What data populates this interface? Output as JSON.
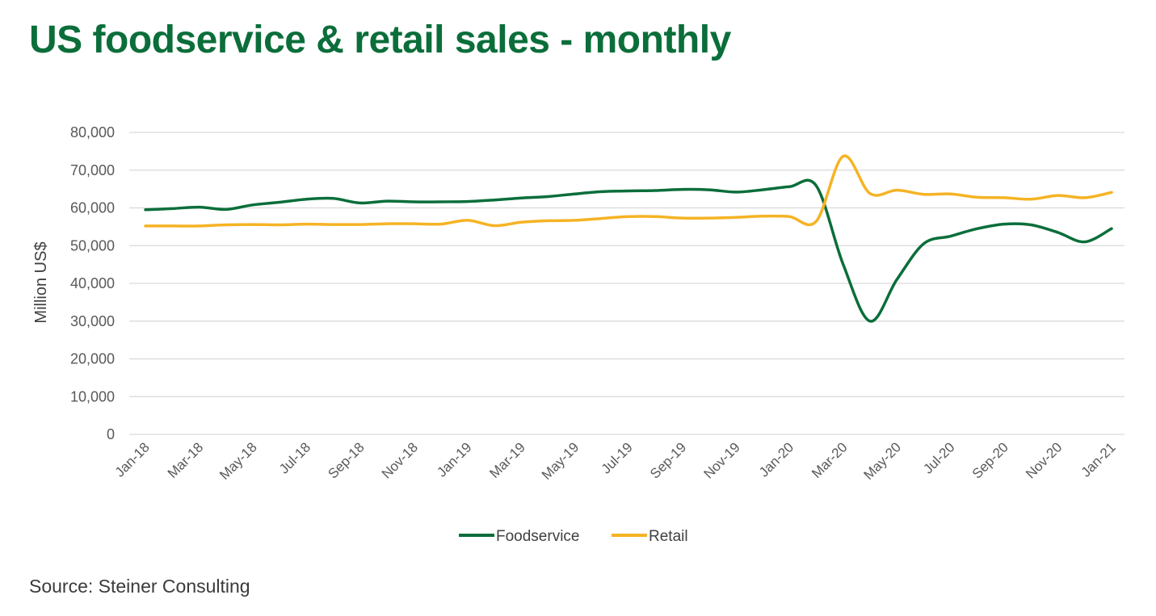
{
  "chart_data": {
    "type": "line",
    "title": "US foodservice & retail sales - monthly",
    "ylabel": "Million US$",
    "xlabel": "",
    "ylim": [
      0,
      80000
    ],
    "yticks": [
      0,
      10000,
      20000,
      30000,
      40000,
      50000,
      60000,
      70000,
      80000
    ],
    "ytick_labels": [
      "0",
      "10,000",
      "20,000",
      "30,000",
      "40,000",
      "50,000",
      "60,000",
      "70,000",
      "80,000"
    ],
    "grid": true,
    "legend": "bottom",
    "categories": [
      "Jan-18",
      "Feb-18",
      "Mar-18",
      "Apr-18",
      "May-18",
      "Jun-18",
      "Jul-18",
      "Aug-18",
      "Sep-18",
      "Oct-18",
      "Nov-18",
      "Dec-18",
      "Jan-19",
      "Feb-19",
      "Mar-19",
      "Apr-19",
      "May-19",
      "Jun-19",
      "Jul-19",
      "Aug-19",
      "Sep-19",
      "Oct-19",
      "Nov-19",
      "Dec-19",
      "Jan-20",
      "Feb-20",
      "Mar-20",
      "Apr-20",
      "May-20",
      "Jun-20",
      "Jul-20",
      "Aug-20",
      "Sep-20",
      "Oct-20",
      "Nov-20",
      "Dec-20",
      "Jan-21"
    ],
    "tick_labels": [
      "Jan-18",
      "Mar-18",
      "May-18",
      "Jul-18",
      "Sep-18",
      "Nov-18",
      "Jan-19",
      "Mar-19",
      "May-19",
      "Jul-19",
      "Sep-19",
      "Nov-19",
      "Jan-20",
      "Mar-20",
      "May-20",
      "Jul-20",
      "Sep-20",
      "Nov-20",
      "Jan-21"
    ],
    "series": [
      {
        "name": "Foodservice",
        "color": "#0b6e3a",
        "values": [
          59500,
          59800,
          60200,
          59600,
          60800,
          61500,
          62300,
          62500,
          61300,
          61800,
          61600,
          61600,
          61700,
          62100,
          62600,
          63000,
          63700,
          64300,
          64500,
          64600,
          64900,
          64800,
          64200,
          64800,
          65600,
          65800,
          45000,
          30000,
          41000,
          50500,
          52500,
          54500,
          55700,
          55500,
          53500,
          51000,
          54500
        ]
      },
      {
        "name": "Retail",
        "color": "#f5b324",
        "values": [
          55200,
          55200,
          55200,
          55500,
          55600,
          55500,
          55700,
          55600,
          55600,
          55800,
          55800,
          55700,
          56700,
          55300,
          56200,
          56600,
          56700,
          57200,
          57700,
          57700,
          57300,
          57300,
          57500,
          57800,
          57700,
          56500,
          73700,
          63800,
          64700,
          63600,
          63700,
          62800,
          62700,
          62300,
          63300,
          62700,
          64100
        ]
      }
    ]
  },
  "source": "Source: Steiner Consulting"
}
